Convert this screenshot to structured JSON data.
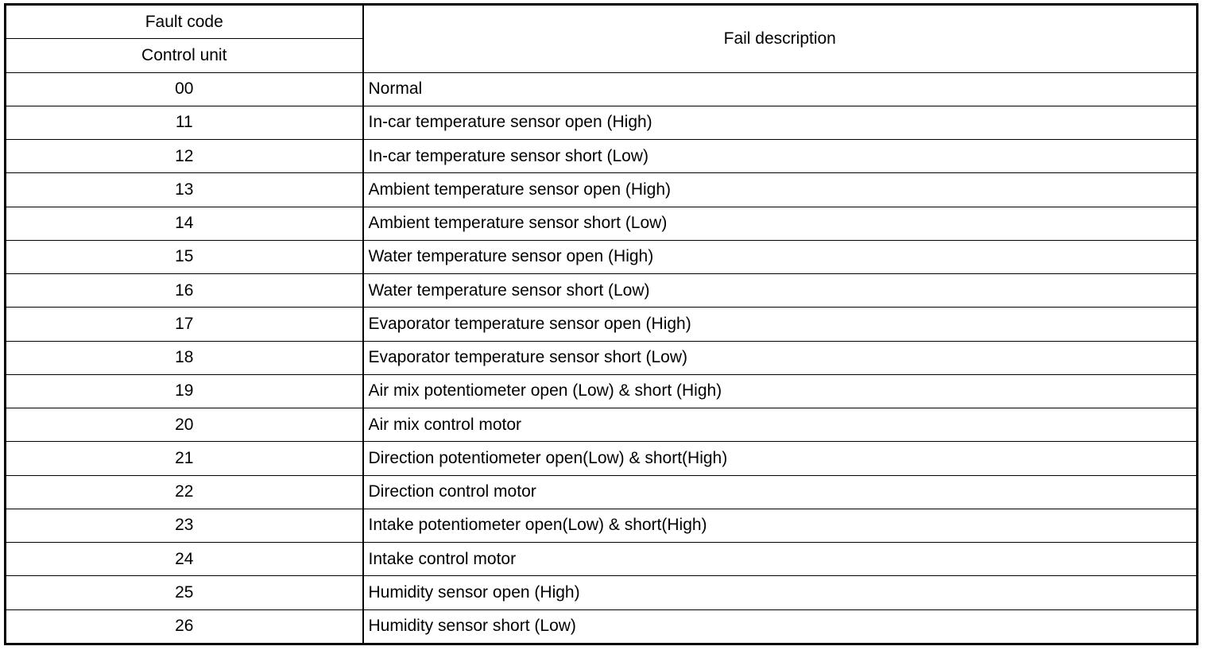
{
  "table": {
    "header": {
      "fault_code": "Fault code",
      "control_unit": "Control unit",
      "fail_description": "Fail description"
    },
    "rows": [
      {
        "code": "00",
        "description": "Normal"
      },
      {
        "code": "11",
        "description": "In-car temperature sensor open (High)"
      },
      {
        "code": "12",
        "description": "In-car temperature sensor short (Low)"
      },
      {
        "code": "13",
        "description": "Ambient temperature sensor open (High)"
      },
      {
        "code": "14",
        "description": "Ambient temperature sensor short (Low)"
      },
      {
        "code": "15",
        "description": "Water temperature sensor open (High)"
      },
      {
        "code": "16",
        "description": "Water temperature sensor short (Low)"
      },
      {
        "code": "17",
        "description": "Evaporator temperature sensor open (High)"
      },
      {
        "code": "18",
        "description": "Evaporator temperature sensor short (Low)"
      },
      {
        "code": "19",
        "description": "Air mix potentiometer open (Low) & short (High)"
      },
      {
        "code": "20",
        "description": "Air mix control motor"
      },
      {
        "code": "21",
        "description": "Direction potentiometer open(Low) & short(High)"
      },
      {
        "code": "22",
        "description": "Direction control motor"
      },
      {
        "code": "23",
        "description": "Intake potentiometer open(Low) & short(High)"
      },
      {
        "code": "24",
        "description": "Intake control motor"
      },
      {
        "code": "25",
        "description": "Humidity sensor open (High)"
      },
      {
        "code": "26",
        "description": "Humidity sensor short (Low)"
      }
    ]
  }
}
